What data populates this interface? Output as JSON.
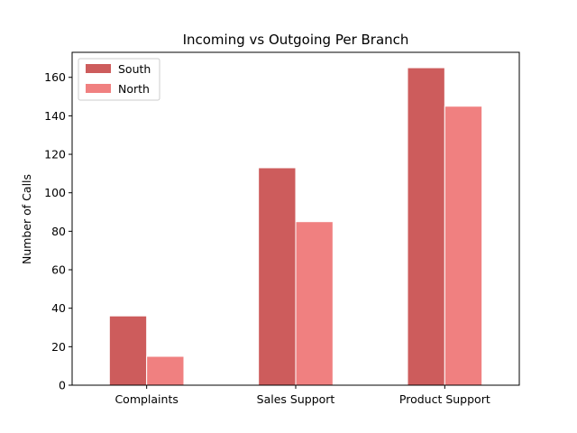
{
  "chart_data": {
    "type": "bar",
    "title": "Incoming vs Outgoing Per Branch",
    "xlabel": "",
    "ylabel": "Number of Calls",
    "categories": [
      "Complaints",
      "Sales Support",
      "Product Support"
    ],
    "series": [
      {
        "name": "South",
        "values": [
          36,
          113,
          165
        ],
        "color": "#cd5c5c"
      },
      {
        "name": "North",
        "values": [
          15,
          85,
          145
        ],
        "color": "#f08080"
      }
    ],
    "ylim": [
      0,
      173
    ],
    "yticks": [
      0,
      20,
      40,
      60,
      80,
      100,
      120,
      140,
      160
    ],
    "grid": false,
    "legend_position": "top-left"
  }
}
